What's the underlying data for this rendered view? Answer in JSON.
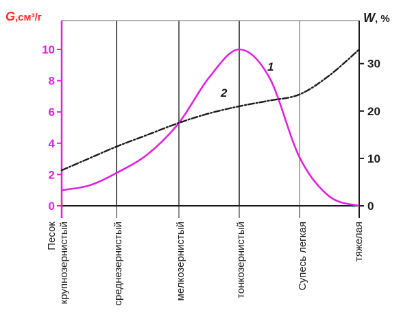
{
  "chart_data": {
    "type": "line",
    "left_axis": {
      "title_symbol": "G",
      "title_unit": ",см³/г",
      "range": [
        0,
        10
      ],
      "ticks": [
        0,
        2,
        4,
        6,
        8,
        10
      ],
      "tick_labels": [
        "0",
        "2",
        "4",
        "6",
        "8",
        "10"
      ],
      "color": "#e020e0"
    },
    "right_axis": {
      "title_symbol": "W",
      "title_unit": ", %",
      "range": [
        0,
        33
      ],
      "ticks": [
        0,
        10,
        20,
        30
      ],
      "tick_labels": [
        "0",
        "10",
        "20",
        "30"
      ],
      "color": "#1a1a1a"
    },
    "categories": [
      {
        "lines": [
          "Песок",
          "крупнозернистый"
        ]
      },
      {
        "lines": [
          "среднезернистый"
        ]
      },
      {
        "lines": [
          "мелкозернистый"
        ]
      },
      {
        "lines": [
          "тонкозернистый"
        ]
      },
      {
        "lines": [
          "Супесь легкая"
        ]
      },
      {
        "lines": [
          "тяжелая"
        ]
      }
    ],
    "grid": true,
    "series": [
      {
        "id": "1",
        "label": "1",
        "axis": "left",
        "color": "#e020e0",
        "style": "solid",
        "x": [
          0,
          0.5,
          1,
          1.5,
          2,
          2.5,
          3,
          3.5,
          4,
          4.5,
          5
        ],
        "y": [
          1.0,
          1.3,
          2.1,
          3.3,
          5.3,
          8.2,
          10.0,
          8.2,
          3.1,
          0.6,
          0.0
        ]
      },
      {
        "id": "2",
        "label": "2",
        "axis": "right",
        "color": "#1a1a1a",
        "style": "dashdot",
        "x": [
          0,
          0.5,
          1,
          1.5,
          2,
          2.5,
          3,
          3.5,
          4,
          4.5,
          5
        ],
        "y": [
          7.5,
          10.0,
          12.5,
          15.0,
          17.5,
          19.5,
          21.0,
          22.2,
          23.5,
          27.5,
          33.0
        ]
      }
    ]
  }
}
